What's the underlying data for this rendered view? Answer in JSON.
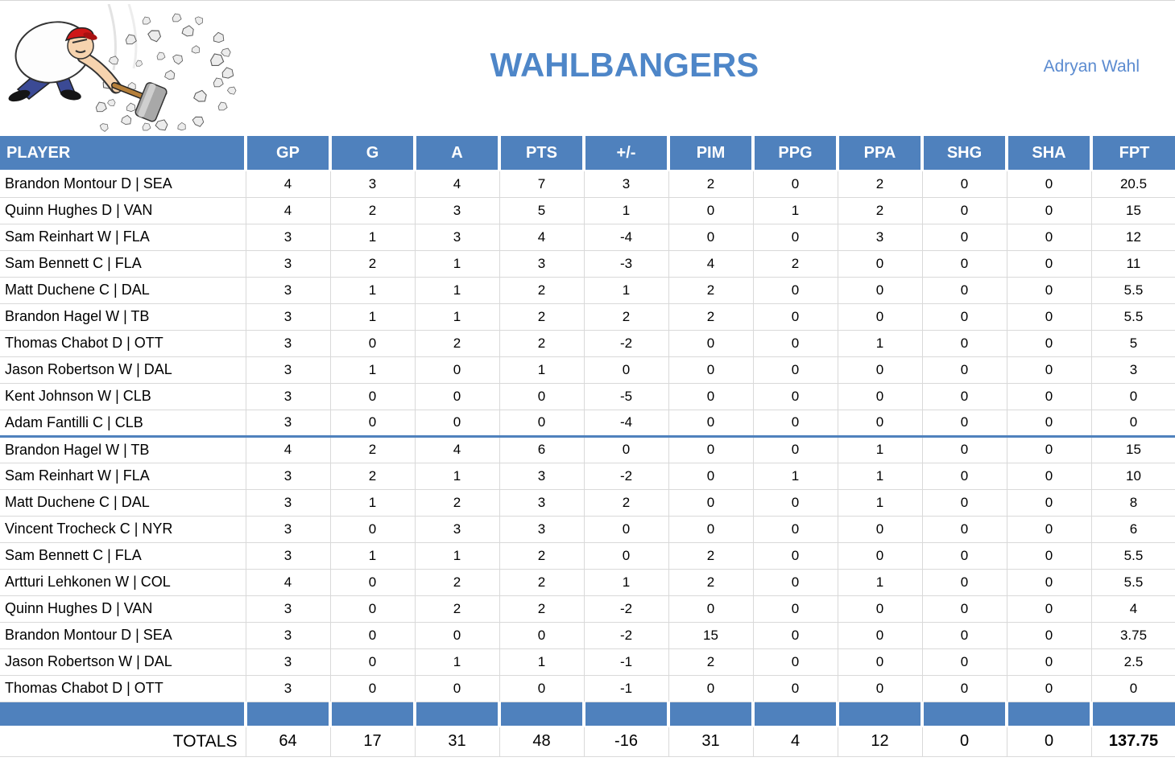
{
  "header": {
    "title": "WAHLBANGERS",
    "owner": "Adryan Wahl",
    "logo_icon": "rock-smasher-hammer-cartoon"
  },
  "colors": {
    "accent": "#4f81bd",
    "title_blue": "#4e86c8",
    "owner_blue": "#5b8bd0",
    "gridline": "#d9d9d9",
    "text": "#000000"
  },
  "table": {
    "columns": [
      "PLAYER",
      "GP",
      "G",
      "A",
      "PTS",
      "+/-",
      "PIM",
      "PPG",
      "PPA",
      "SHG",
      "SHA",
      "FPT"
    ],
    "groups": [
      [
        {
          "player": "Brandon Montour D | SEA",
          "stats": [
            4,
            3,
            4,
            7,
            3,
            2,
            0,
            2,
            0,
            0,
            20.5
          ]
        },
        {
          "player": "Quinn Hughes D | VAN",
          "stats": [
            4,
            2,
            3,
            5,
            1,
            0,
            1,
            2,
            0,
            0,
            15
          ]
        },
        {
          "player": "Sam Reinhart W | FLA",
          "stats": [
            3,
            1,
            3,
            4,
            -4,
            0,
            0,
            3,
            0,
            0,
            12
          ]
        },
        {
          "player": "Sam Bennett C | FLA",
          "stats": [
            3,
            2,
            1,
            3,
            -3,
            4,
            2,
            0,
            0,
            0,
            11
          ]
        },
        {
          "player": "Matt Duchene C | DAL",
          "stats": [
            3,
            1,
            1,
            2,
            1,
            2,
            0,
            0,
            0,
            0,
            5.5
          ]
        },
        {
          "player": "Brandon Hagel W | TB",
          "stats": [
            3,
            1,
            1,
            2,
            2,
            2,
            0,
            0,
            0,
            0,
            5.5
          ]
        },
        {
          "player": "Thomas Chabot D | OTT",
          "stats": [
            3,
            0,
            2,
            2,
            -2,
            0,
            0,
            1,
            0,
            0,
            5
          ]
        },
        {
          "player": "Jason Robertson W | DAL",
          "stats": [
            3,
            1,
            0,
            1,
            0,
            0,
            0,
            0,
            0,
            0,
            3
          ]
        },
        {
          "player": "Kent Johnson W | CLB",
          "stats": [
            3,
            0,
            0,
            0,
            -5,
            0,
            0,
            0,
            0,
            0,
            0
          ]
        },
        {
          "player": "Adam Fantilli C | CLB",
          "stats": [
            3,
            0,
            0,
            0,
            -4,
            0,
            0,
            0,
            0,
            0,
            0
          ]
        }
      ],
      [
        {
          "player": "Brandon Hagel W | TB",
          "stats": [
            4,
            2,
            4,
            6,
            0,
            0,
            0,
            1,
            0,
            0,
            15
          ]
        },
        {
          "player": "Sam Reinhart W | FLA",
          "stats": [
            3,
            2,
            1,
            3,
            -2,
            0,
            1,
            1,
            0,
            0,
            10
          ]
        },
        {
          "player": "Matt Duchene C | DAL",
          "stats": [
            3,
            1,
            2,
            3,
            2,
            0,
            0,
            1,
            0,
            0,
            8
          ]
        },
        {
          "player": "Vincent Trocheck C | NYR",
          "stats": [
            3,
            0,
            3,
            3,
            0,
            0,
            0,
            0,
            0,
            0,
            6
          ]
        },
        {
          "player": "Sam Bennett C | FLA",
          "stats": [
            3,
            1,
            1,
            2,
            0,
            2,
            0,
            0,
            0,
            0,
            5.5
          ]
        },
        {
          "player": "Artturi Lehkonen W | COL",
          "stats": [
            4,
            0,
            2,
            2,
            1,
            2,
            0,
            1,
            0,
            0,
            5.5
          ]
        },
        {
          "player": "Quinn Hughes D | VAN",
          "stats": [
            3,
            0,
            2,
            2,
            -2,
            0,
            0,
            0,
            0,
            0,
            4
          ]
        },
        {
          "player": "Brandon Montour D | SEA",
          "stats": [
            3,
            0,
            0,
            0,
            -2,
            15,
            0,
            0,
            0,
            0,
            3.75
          ]
        },
        {
          "player": "Jason Robertson W | DAL",
          "stats": [
            3,
            0,
            1,
            1,
            -1,
            2,
            0,
            0,
            0,
            0,
            2.5
          ]
        },
        {
          "player": "Thomas Chabot D | OTT",
          "stats": [
            3,
            0,
            0,
            0,
            -1,
            0,
            0,
            0,
            0,
            0,
            0
          ]
        }
      ]
    ],
    "totals": {
      "label": "TOTALS",
      "values": [
        64,
        17,
        31,
        48,
        -16,
        31,
        4,
        12,
        0,
        0,
        137.75
      ]
    }
  }
}
